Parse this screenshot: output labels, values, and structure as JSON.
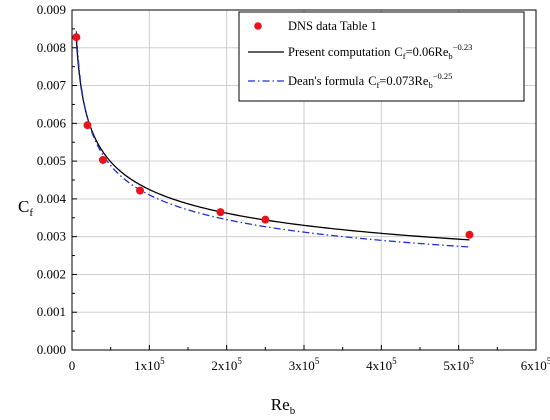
{
  "chart_data": {
    "type": "scatter",
    "xlim": [
      0,
      600000
    ],
    "ylim": [
      0,
      0.009
    ],
    "grid": true,
    "legend_position": "top-right",
    "xlabel": {
      "main": "Re",
      "sub": "b"
    },
    "ylabel": {
      "main": "C",
      "sub": "f"
    },
    "x_ticks": [
      {
        "value": 0,
        "mant": "0",
        "exp": ""
      },
      {
        "value": 100000,
        "mant": "1x10",
        "exp": "5"
      },
      {
        "value": 200000,
        "mant": "2x10",
        "exp": "5"
      },
      {
        "value": 300000,
        "mant": "3x10",
        "exp": "5"
      },
      {
        "value": 400000,
        "mant": "4x10",
        "exp": "5"
      },
      {
        "value": 500000,
        "mant": "5x10",
        "exp": "5"
      },
      {
        "value": 600000,
        "mant": "6x10",
        "exp": "5"
      }
    ],
    "y_ticks": [
      {
        "value": 0,
        "label": "0.000"
      },
      {
        "value": 0.001,
        "label": "0.001"
      },
      {
        "value": 0.002,
        "label": "0.002"
      },
      {
        "value": 0.003,
        "label": "0.003"
      },
      {
        "value": 0.004,
        "label": "0.004"
      },
      {
        "value": 0.005,
        "label": "0.005"
      },
      {
        "value": 0.006,
        "label": "0.006"
      },
      {
        "value": 0.007,
        "label": "0.007"
      },
      {
        "value": 0.008,
        "label": "0.008"
      },
      {
        "value": 0.009,
        "label": "0.009"
      }
    ],
    "series": [
      {
        "kind": "points",
        "name": "DNS data Table 1",
        "color": "#e8141b",
        "points": [
          {
            "x": 5600,
            "y": 0.00828
          },
          {
            "x": 20000,
            "y": 0.00595
          },
          {
            "x": 40000,
            "y": 0.00503
          },
          {
            "x": 88000,
            "y": 0.00422
          },
          {
            "x": 192000,
            "y": 0.00365
          },
          {
            "x": 250000,
            "y": 0.00345
          },
          {
            "x": 514000,
            "y": 0.00305
          }
        ]
      },
      {
        "kind": "curve",
        "name": "Present computation",
        "formula_prefix": "C",
        "formula_sub": "f",
        "formula_mid": "=0.06Re",
        "formula_sub2": "b",
        "formula_exp": "−0.23",
        "coef": 0.06,
        "power": -0.23,
        "x_range": [
          5600,
          514000
        ],
        "color": "#000000",
        "dash": ""
      },
      {
        "kind": "curve",
        "name": "Dean's formula",
        "formula_prefix": "C",
        "formula_sub": "f",
        "formula_mid": "=0.073Re",
        "formula_sub2": "b",
        "formula_exp": "−0.25",
        "coef": 0.073,
        "power": -0.25,
        "x_range": [
          5600,
          514000
        ],
        "color": "#1a2fd6",
        "dash": "7,3,1.5,3"
      }
    ]
  }
}
